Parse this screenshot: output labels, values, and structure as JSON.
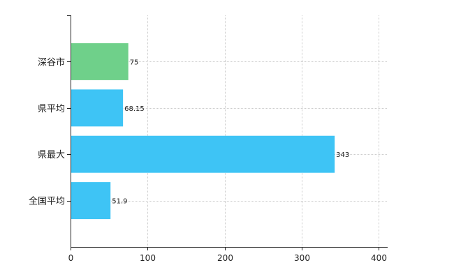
{
  "chart_data": {
    "type": "bar",
    "orientation": "horizontal",
    "categories": [
      "深谷市",
      "県平均",
      "県最大",
      "全国平均"
    ],
    "values": [
      75,
      68.15,
      343,
      51.9
    ],
    "value_labels": [
      "75",
      "68.15",
      "343",
      "51.9"
    ],
    "colors": [
      "#6fd08a",
      "#3ec4f5",
      "#3ec4f5",
      "#3ec4f5"
    ],
    "xlim": [
      0,
      400
    ],
    "xticks": [
      0,
      100,
      200,
      300,
      400
    ],
    "xtick_labels": [
      "0",
      "100",
      "200",
      "300",
      "400"
    ],
    "grid": true,
    "title": "",
    "xlabel": "",
    "ylabel": ""
  }
}
